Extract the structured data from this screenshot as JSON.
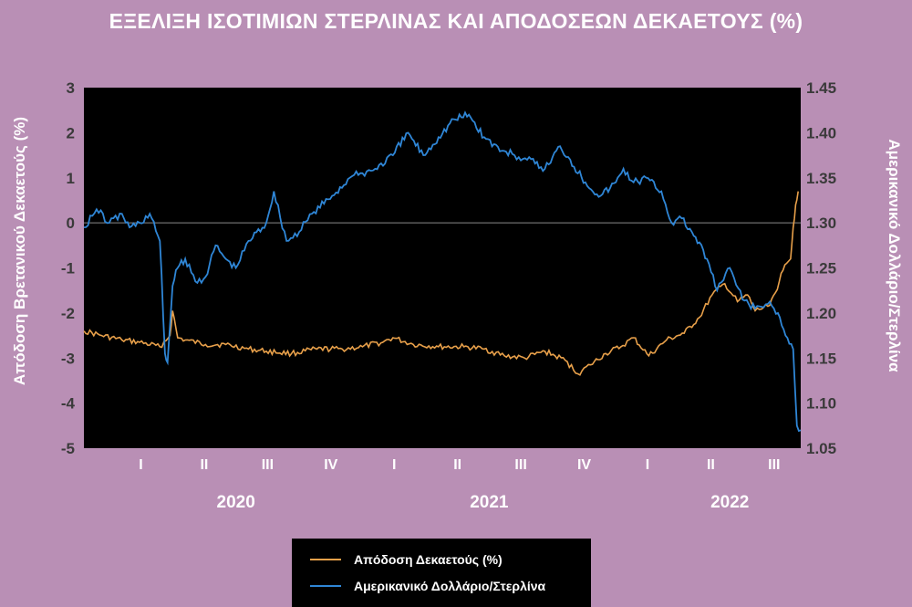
{
  "title": "ΕΞΕΛΙΞΗ ΙΣΟΤΙΜΙΩΝ ΣΤΕΡΛΙΝΑΣ ΚΑΙ ΑΠΟΔΟΣΕΩΝ ΔΕΚΑΕΤΟΥΣ (%)",
  "colors": {
    "background": "#b98fb5",
    "plot_background": "#000000",
    "yield_series": "#e8a04a",
    "fx_series": "#2f86d6"
  },
  "chart_data": {
    "type": "line",
    "title": "ΕΞΕΛΙΞΗ ΙΣΟΤΙΜΙΩΝ ΣΤΕΡΛΙΝΑΣ ΚΑΙ ΑΠΟΔΟΣΕΩΝ ΔΕΚΑΕΤΟΥΣ (%)",
    "ylabel_left": "Απόδοση Βρετανικού Δεκαετούς (%)",
    "ylabel_right": "Αμερικανικό Δολλάριο/Στερλίνα",
    "ylim_left": [
      -5,
      3
    ],
    "yticks_left": [
      "3",
      "2",
      "1",
      "0",
      "-1",
      "-2",
      "-3",
      "-4",
      "-5"
    ],
    "ylim_right": [
      1.05,
      1.45
    ],
    "yticks_right": [
      "1.45",
      "1.40",
      "1.35",
      "1.30",
      "1.25",
      "1.20",
      "1.15",
      "1.10",
      "1.05"
    ],
    "xlim": [
      2019.9,
      2022.73
    ],
    "x_quarter_labels": [
      {
        "x": 2020.125,
        "label": "I"
      },
      {
        "x": 2020.375,
        "label": "II"
      },
      {
        "x": 2020.625,
        "label": "III"
      },
      {
        "x": 2020.875,
        "label": "IV"
      },
      {
        "x": 2021.125,
        "label": "I"
      },
      {
        "x": 2021.375,
        "label": "II"
      },
      {
        "x": 2021.625,
        "label": "III"
      },
      {
        "x": 2021.875,
        "label": "IV"
      },
      {
        "x": 2022.125,
        "label": "I"
      },
      {
        "x": 2022.375,
        "label": "II"
      },
      {
        "x": 2022.625,
        "label": "III"
      }
    ],
    "x_year_labels": [
      {
        "x": 2020.5,
        "label": "2020"
      },
      {
        "x": 2021.5,
        "label": "2021"
      },
      {
        "x": 2022.45,
        "label": "2022"
      }
    ],
    "grid": false,
    "zero_line": true,
    "legend_position": "bottom-center",
    "series": [
      {
        "name": "Απόδοση Δεκαετούς (%)",
        "axis": "left",
        "color": "#e8a04a",
        "x": [
          2019.9,
          2019.97,
          2020.05,
          2020.12,
          2020.2,
          2020.24,
          2020.25,
          2020.27,
          2020.3,
          2020.38,
          2020.46,
          2020.55,
          2020.62,
          2020.72,
          2020.82,
          2020.92,
          2021.0,
          2021.08,
          2021.12,
          2021.2,
          2021.3,
          2021.4,
          2021.48,
          2021.56,
          2021.64,
          2021.72,
          2021.8,
          2021.85,
          2021.9,
          2021.96,
          2022.02,
          2022.07,
          2022.13,
          2022.2,
          2022.27,
          2022.33,
          2022.38,
          2022.43,
          2022.48,
          2022.52,
          2022.55,
          2022.6,
          2022.63,
          2022.66,
          2022.69,
          2022.7,
          2022.71,
          2022.72
        ],
        "values": [
          -2.4,
          -2.5,
          -2.6,
          -2.65,
          -2.75,
          -2.5,
          -1.95,
          -2.55,
          -2.6,
          -2.7,
          -2.7,
          -2.8,
          -2.85,
          -2.9,
          -2.8,
          -2.8,
          -2.75,
          -2.65,
          -2.55,
          -2.7,
          -2.75,
          -2.75,
          -2.8,
          -2.95,
          -3.0,
          -2.85,
          -3.05,
          -3.35,
          -3.15,
          -2.9,
          -2.75,
          -2.55,
          -2.95,
          -2.6,
          -2.45,
          -2.1,
          -1.6,
          -1.35,
          -1.75,
          -1.6,
          -1.95,
          -1.85,
          -1.55,
          -1.05,
          -0.8,
          -0.1,
          0.4,
          0.7
        ]
      },
      {
        "name": "Αμερικανικό Δολλάριο/Στερλίνα",
        "axis": "right",
        "color": "#2f86d6",
        "x": [
          2019.9,
          2019.95,
          2020.0,
          2020.05,
          2020.08,
          2020.12,
          2020.16,
          2020.2,
          2020.22,
          2020.23,
          2020.25,
          2020.27,
          2020.3,
          2020.34,
          2020.38,
          2020.42,
          2020.46,
          2020.5,
          2020.55,
          2020.62,
          2020.65,
          2020.7,
          2020.75,
          2020.8,
          2020.88,
          2020.95,
          2021.0,
          2021.05,
          2021.12,
          2021.18,
          2021.24,
          2021.3,
          2021.36,
          2021.42,
          2021.48,
          2021.55,
          2021.6,
          2021.65,
          2021.72,
          2021.78,
          2021.82,
          2021.88,
          2021.94,
          2022.0,
          2022.03,
          2022.07,
          2022.12,
          2022.18,
          2022.22,
          2022.26,
          2022.3,
          2022.36,
          2022.4,
          2022.45,
          2022.5,
          2022.55,
          2022.6,
          2022.64,
          2022.67,
          2022.7,
          2022.715,
          2022.73
        ],
        "values": [
          1.295,
          1.315,
          1.3,
          1.31,
          1.295,
          1.3,
          1.31,
          1.28,
          1.155,
          1.145,
          1.23,
          1.25,
          1.26,
          1.235,
          1.24,
          1.275,
          1.26,
          1.25,
          1.28,
          1.3,
          1.335,
          1.28,
          1.29,
          1.31,
          1.33,
          1.35,
          1.355,
          1.36,
          1.375,
          1.4,
          1.375,
          1.395,
          1.415,
          1.42,
          1.395,
          1.38,
          1.375,
          1.37,
          1.36,
          1.385,
          1.37,
          1.345,
          1.33,
          1.345,
          1.36,
          1.345,
          1.35,
          1.335,
          1.3,
          1.305,
          1.29,
          1.26,
          1.225,
          1.25,
          1.215,
          1.205,
          1.21,
          1.2,
          1.175,
          1.16,
          1.075,
          1.07
        ]
      }
    ]
  }
}
